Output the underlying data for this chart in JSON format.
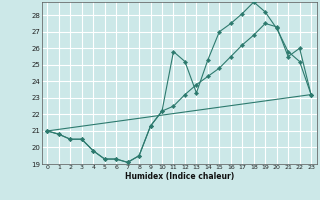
{
  "title": "",
  "xlabel": "Humidex (Indice chaleur)",
  "bg_color": "#cce8e8",
  "grid_color": "#ffffff",
  "line_color": "#2d7a6e",
  "xlim": [
    -0.5,
    23.5
  ],
  "ylim": [
    19,
    28.8
  ],
  "yticks": [
    19,
    20,
    21,
    22,
    23,
    24,
    25,
    26,
    27,
    28
  ],
  "xticks": [
    0,
    1,
    2,
    3,
    4,
    5,
    6,
    7,
    8,
    9,
    10,
    11,
    12,
    13,
    14,
    15,
    16,
    17,
    18,
    19,
    20,
    21,
    22,
    23
  ],
  "series1_x": [
    0,
    1,
    2,
    3,
    4,
    5,
    6,
    7,
    8,
    9,
    10,
    11,
    12,
    13,
    14,
    15,
    16,
    17,
    18,
    19,
    20,
    21,
    22,
    23
  ],
  "series1_y": [
    21.0,
    20.8,
    20.5,
    20.5,
    19.8,
    19.3,
    19.3,
    19.1,
    19.5,
    21.3,
    22.2,
    25.8,
    25.2,
    23.3,
    25.3,
    27.0,
    27.5,
    28.1,
    28.8,
    28.2,
    27.2,
    25.8,
    25.2,
    23.2
  ],
  "series2_x": [
    0,
    1,
    2,
    3,
    4,
    5,
    6,
    7,
    8,
    9,
    10,
    11,
    12,
    13,
    14,
    15,
    16,
    17,
    18,
    19,
    20,
    21,
    22,
    23
  ],
  "series2_y": [
    21.0,
    20.8,
    20.5,
    20.5,
    19.8,
    19.3,
    19.3,
    19.1,
    19.5,
    21.3,
    22.2,
    22.5,
    23.2,
    23.8,
    24.3,
    24.8,
    25.5,
    26.2,
    26.8,
    27.5,
    27.3,
    25.5,
    26.0,
    23.2
  ],
  "series3_x": [
    0,
    23
  ],
  "series3_y": [
    21.0,
    23.2
  ]
}
